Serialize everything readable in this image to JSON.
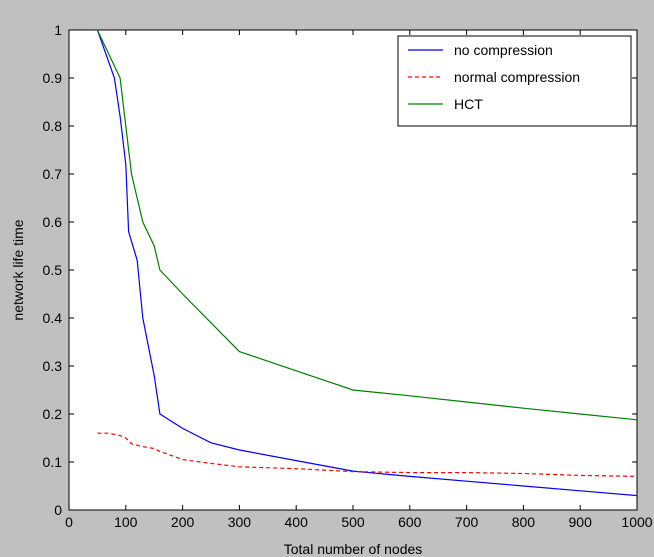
{
  "chart_data": {
    "type": "line",
    "title": "",
    "xlabel": "Total number of nodes",
    "ylabel": "network life time",
    "xlim": [
      0,
      1000
    ],
    "ylim": [
      0,
      1
    ],
    "xticks": [
      0,
      100,
      200,
      300,
      400,
      500,
      600,
      700,
      800,
      900,
      1000
    ],
    "xtick_labels": [
      "0",
      "100",
      "200",
      "300",
      "400",
      "500",
      "600",
      "700",
      "800",
      "900",
      "1000"
    ],
    "yticks": [
      0,
      0.1,
      0.2,
      0.3,
      0.4,
      0.5,
      0.6,
      0.7,
      0.8,
      0.9,
      1
    ],
    "ytick_labels": [
      "0",
      "0.1",
      "0.2",
      "0.3",
      "0.4",
      "0.5",
      "0.6",
      "0.7",
      "0.8",
      "0.9",
      "1"
    ],
    "grid": false,
    "legend_position": "top-right",
    "series": [
      {
        "name": "no compression",
        "color": "#0000ff",
        "style": "solid",
        "x": [
          50,
          80,
          90,
          100,
          105,
          120,
          130,
          150,
          160,
          200,
          250,
          300,
          400,
          500,
          600,
          700,
          800,
          900,
          1000
        ],
        "y": [
          1.0,
          0.9,
          0.82,
          0.72,
          0.58,
          0.52,
          0.4,
          0.28,
          0.2,
          0.17,
          0.14,
          0.125,
          0.103,
          0.081,
          0.07,
          0.06,
          0.05,
          0.04,
          0.03
        ]
      },
      {
        "name": "normal compression",
        "color": "#ff0000",
        "style": "dashed",
        "x": [
          50,
          70,
          90,
          100,
          110,
          130,
          150,
          160,
          200,
          250,
          300,
          400,
          500,
          600,
          700,
          800,
          900,
          1000
        ],
        "y": [
          0.16,
          0.16,
          0.155,
          0.15,
          0.138,
          0.132,
          0.128,
          0.122,
          0.105,
          0.097,
          0.09,
          0.086,
          0.08,
          0.078,
          0.078,
          0.076,
          0.072,
          0.07
        ]
      },
      {
        "name": "HCT",
        "color": "#008000",
        "style": "solid",
        "x": [
          50,
          90,
          100,
          110,
          130,
          150,
          160,
          200,
          250,
          300,
          400,
          500,
          600,
          700,
          800,
          900,
          1000
        ],
        "y": [
          1.0,
          0.9,
          0.8,
          0.7,
          0.6,
          0.55,
          0.5,
          0.45,
          0.39,
          0.33,
          0.29,
          0.25,
          0.238,
          0.225,
          0.212,
          0.2,
          0.188
        ]
      }
    ]
  }
}
